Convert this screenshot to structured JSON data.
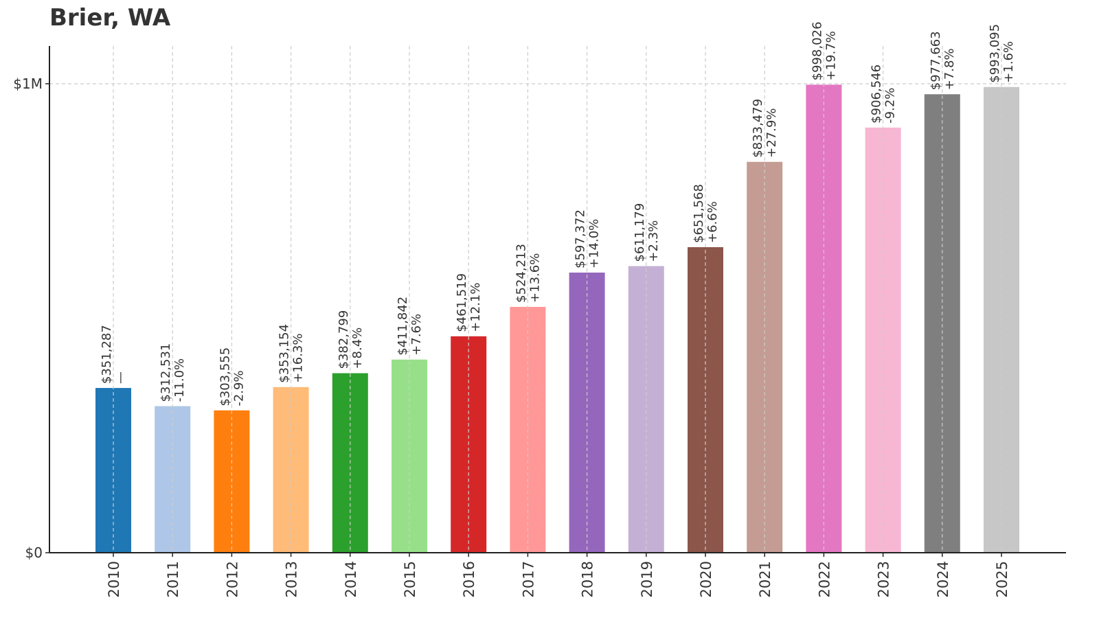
{
  "chart_data": {
    "type": "bar",
    "title": "Brier, WA",
    "xlabel": "",
    "ylabel": "",
    "ylim": [
      0,
      1080000
    ],
    "y_ticks": [
      {
        "value": 0,
        "label": "$0"
      },
      {
        "value": 1000000,
        "label": "$1M"
      }
    ],
    "grid": true,
    "categories": [
      "2010",
      "2011",
      "2012",
      "2013",
      "2014",
      "2015",
      "2016",
      "2017",
      "2018",
      "2019",
      "2020",
      "2021",
      "2022",
      "2023",
      "2024",
      "2025"
    ],
    "values": [
      351287,
      312531,
      303555,
      353154,
      382799,
      411842,
      461519,
      524213,
      597372,
      611179,
      651568,
      833479,
      998026,
      906546,
      977663,
      993095
    ],
    "value_labels": [
      "$351,287",
      "$312,531",
      "$303,555",
      "$353,154",
      "$382,799",
      "$411,842",
      "$461,519",
      "$524,213",
      "$597,372",
      "$611,179",
      "$651,568",
      "$833,479",
      "$998,026",
      "$906,546",
      "$977,663",
      "$993,095"
    ],
    "change_labels": [
      "—",
      "-11.0%",
      "-2.9%",
      "+16.3%",
      "+8.4%",
      "+7.6%",
      "+12.1%",
      "+13.6%",
      "+14.0%",
      "+2.3%",
      "+6.6%",
      "+27.9%",
      "+19.7%",
      "-9.2%",
      "+7.8%",
      "+1.6%"
    ],
    "colors": [
      "#1f77b4",
      "#aec7e8",
      "#ff7f0e",
      "#ffbb78",
      "#2ca02c",
      "#98df8a",
      "#d62728",
      "#ff9896",
      "#9467bd",
      "#c5b0d5",
      "#8c564b",
      "#c49c94",
      "#e377c2",
      "#f7b6d2",
      "#7f7f7f",
      "#c7c7c7"
    ]
  }
}
